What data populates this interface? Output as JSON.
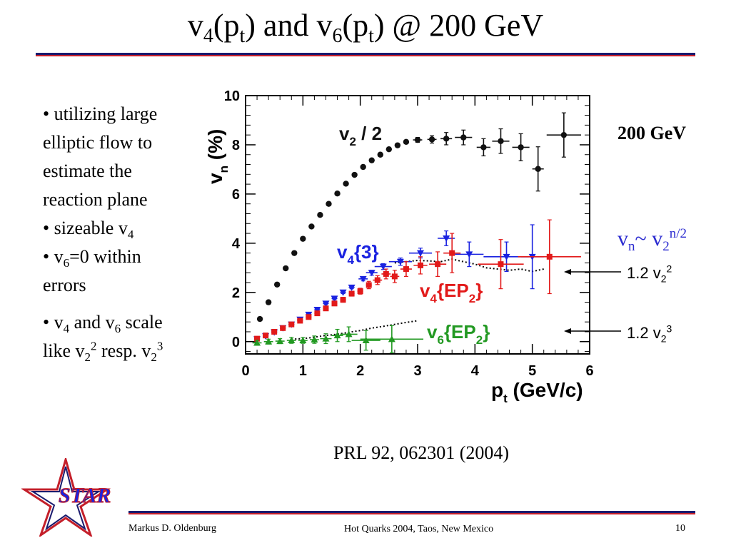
{
  "slide": {
    "title_base": "v",
    "title_sub1": "4",
    "title_mid1": "(p",
    "title_sub2": "t",
    "title_mid2": ") and v",
    "title_sub3": "6",
    "title_mid3": "(p",
    "title_sub4": "t",
    "title_end": ") @ 200 GeV",
    "bullets": {
      "b1_l1": "• utilizing large",
      "b1_l2": "elliptic flow to",
      "b1_l3": "estimate the",
      "b1_l4": "reaction plane",
      "b2_text": "• sizeable v",
      "b2_sub": "4",
      "b3_text": "• v",
      "b3_sub": "6",
      "b3_rest": "=0 within",
      "b3_l2": "errors",
      "b4_text": "• v",
      "b4_sub1": "4",
      "b4_mid": " and v",
      "b4_sub2": "6",
      "b4_end": " scale",
      "b4_l2": "like v",
      "b4_sub3": "2",
      "b4_sup1": "2",
      "b4_mid2": " resp. v",
      "b4_sub4": "2",
      "b4_sup2": "3"
    },
    "energy_label": "200 GeV",
    "scaling_base": "v",
    "scaling_sub1": "n",
    "scaling_tilde": "~ v",
    "scaling_sub2": "2",
    "scaling_sup": "n/2",
    "ref_label_1": {
      "base": "1.2 v",
      "sub": "2",
      "sup": "2"
    },
    "ref_label_2": {
      "base": "1.2 v",
      "sub": "2",
      "sup": "3"
    },
    "citation": "PRL 92, 062301 (2004)",
    "footer_author": "Markus D. Oldenburg",
    "footer_event": "Hot Quarks 2004, Taos, New Mexico",
    "footer_page": "10",
    "logo_text": "STAR"
  },
  "colors": {
    "black": "#111111",
    "blue": "#1a22e0",
    "red": "#e21a1a",
    "green": "#229922",
    "rule_blue": "#1b1b6e",
    "rule_red": "#c41f2a"
  },
  "chart_data": {
    "type": "scatter",
    "xlabel": "p_t (GeV/c)",
    "ylabel": "v_n (%)",
    "xlim": [
      0,
      6
    ],
    "ylim": [
      -0.5,
      10
    ],
    "x_ticks": [
      "0",
      "1",
      "2",
      "3",
      "4",
      "5",
      "6"
    ],
    "y_ticks": [
      "0",
      "2",
      "4",
      "6",
      "8",
      "10"
    ],
    "series": [
      {
        "name": "v2 / 2",
        "label_main": "v",
        "label_sub": "2",
        "label_rest": " / 2",
        "color": "black",
        "marker": "circle",
        "x": [
          0.25,
          0.4,
          0.55,
          0.7,
          0.85,
          1.0,
          1.15,
          1.3,
          1.45,
          1.6,
          1.75,
          1.9,
          2.05,
          2.2,
          2.35,
          2.5,
          2.65,
          2.8,
          3.0,
          3.25,
          3.5,
          3.8,
          4.15,
          4.45,
          4.8,
          5.1,
          5.55
        ],
        "y": [
          0.92,
          1.6,
          2.32,
          2.98,
          3.6,
          4.18,
          4.68,
          5.15,
          5.6,
          6.02,
          6.42,
          6.78,
          7.1,
          7.37,
          7.6,
          7.82,
          7.98,
          8.12,
          8.2,
          8.22,
          8.25,
          8.3,
          7.9,
          8.15,
          7.9,
          7.02,
          8.4
        ],
        "xerr": [
          0.03,
          0.03,
          0.03,
          0.03,
          0.03,
          0.03,
          0.03,
          0.03,
          0.03,
          0.03,
          0.03,
          0.03,
          0.03,
          0.03,
          0.03,
          0.03,
          0.03,
          0.03,
          0.08,
          0.08,
          0.1,
          0.15,
          0.12,
          0.15,
          0.15,
          0.1,
          0.3
        ],
        "yerr": [
          0.06,
          0.06,
          0.06,
          0.06,
          0.06,
          0.06,
          0.06,
          0.06,
          0.06,
          0.06,
          0.06,
          0.06,
          0.06,
          0.06,
          0.06,
          0.06,
          0.06,
          0.06,
          0.1,
          0.15,
          0.25,
          0.3,
          0.35,
          0.5,
          0.55,
          0.9,
          0.9
        ]
      },
      {
        "name": "v4{3}",
        "label_main": "v",
        "label_sub": "4",
        "label_rest": "{3}",
        "color": "blue",
        "marker": "triangle-down",
        "x": [
          0.2,
          0.35,
          0.5,
          0.65,
          0.8,
          0.95,
          1.1,
          1.25,
          1.4,
          1.55,
          1.7,
          1.85,
          2.05,
          2.2,
          2.4,
          2.7,
          3.05,
          3.5,
          3.9,
          4.55,
          5.0
        ],
        "y": [
          0.1,
          0.22,
          0.38,
          0.55,
          0.7,
          0.9,
          1.1,
          1.3,
          1.55,
          1.75,
          2.0,
          2.2,
          2.55,
          2.8,
          3.05,
          3.25,
          3.6,
          4.2,
          3.55,
          3.45,
          3.45
        ],
        "xerr": [
          0.05,
          0.05,
          0.05,
          0.05,
          0.05,
          0.05,
          0.05,
          0.05,
          0.05,
          0.05,
          0.05,
          0.05,
          0.08,
          0.1,
          0.15,
          0.2,
          0.2,
          0.15,
          0.25,
          0.4,
          0.2
        ],
        "yerr": [
          0.05,
          0.05,
          0.05,
          0.05,
          0.05,
          0.05,
          0.05,
          0.05,
          0.05,
          0.05,
          0.05,
          0.05,
          0.08,
          0.1,
          0.12,
          0.15,
          0.2,
          0.3,
          0.5,
          0.6,
          1.3
        ]
      },
      {
        "name": "v4{EP2}",
        "label_main": "v",
        "label_sub": "4",
        "label_rest": "{EP",
        "label_sub2": "2",
        "label_end": "}",
        "color": "red",
        "marker": "square",
        "x": [
          0.2,
          0.35,
          0.5,
          0.65,
          0.8,
          0.95,
          1.1,
          1.25,
          1.4,
          1.55,
          1.7,
          1.85,
          2.0,
          2.15,
          2.3,
          2.45,
          2.6,
          2.8,
          3.05,
          3.35,
          3.6,
          4.45,
          5.3
        ],
        "y": [
          0.12,
          0.25,
          0.4,
          0.55,
          0.7,
          0.85,
          1.0,
          1.15,
          1.35,
          1.55,
          1.7,
          1.95,
          2.05,
          2.3,
          2.5,
          2.75,
          2.65,
          2.95,
          3.1,
          3.15,
          3.6,
          3.15,
          3.45
        ],
        "xerr": [
          0.05,
          0.05,
          0.05,
          0.05,
          0.05,
          0.05,
          0.05,
          0.05,
          0.05,
          0.05,
          0.05,
          0.05,
          0.05,
          0.05,
          0.08,
          0.08,
          0.08,
          0.1,
          0.12,
          0.15,
          0.15,
          0.4,
          0.55
        ],
        "yerr": [
          0.06,
          0.06,
          0.06,
          0.06,
          0.06,
          0.06,
          0.06,
          0.06,
          0.08,
          0.08,
          0.1,
          0.1,
          0.12,
          0.15,
          0.18,
          0.2,
          0.25,
          0.3,
          0.35,
          0.5,
          0.8,
          1.0,
          1.5
        ]
      },
      {
        "name": "v6{EP2}",
        "label_main": "v",
        "label_sub": "6",
        "label_rest": "{EP",
        "label_sub2": "2",
        "label_end": "}",
        "color": "green",
        "marker": "triangle-up",
        "x": [
          0.2,
          0.4,
          0.6,
          0.8,
          1.0,
          1.2,
          1.4,
          1.6,
          1.8,
          2.1,
          2.55
        ],
        "y": [
          -0.05,
          0.0,
          0.02,
          0.05,
          0.05,
          0.08,
          0.12,
          0.25,
          0.3,
          0.05,
          0.1
        ],
        "xerr": [
          0.08,
          0.08,
          0.08,
          0.08,
          0.08,
          0.08,
          0.1,
          0.1,
          0.15,
          0.25,
          0.55
        ],
        "yerr": [
          0.1,
          0.1,
          0.1,
          0.12,
          0.12,
          0.15,
          0.2,
          0.25,
          0.3,
          0.4,
          0.55
        ]
      }
    ],
    "reference_curves": [
      {
        "name": "1.2 v2^2",
        "x": [
          2.6,
          2.8,
          3.0,
          3.2,
          3.4,
          3.6,
          3.8,
          4.0,
          4.2,
          4.4,
          4.6,
          4.8,
          5.0,
          5.2
        ],
        "y": [
          3.2,
          3.25,
          3.3,
          3.28,
          3.25,
          3.35,
          3.25,
          3.15,
          3.0,
          2.95,
          2.9,
          2.95,
          2.85,
          2.95
        ]
      },
      {
        "name": "1.2 v2^3",
        "x": [
          0.8,
          1.0,
          1.2,
          1.4,
          1.6,
          1.8,
          2.0,
          2.2,
          2.4,
          2.6,
          2.8,
          3.0
        ],
        "y": [
          0.1,
          0.12,
          0.18,
          0.25,
          0.3,
          0.38,
          0.45,
          0.55,
          0.62,
          0.7,
          0.78,
          0.85
        ]
      }
    ]
  }
}
